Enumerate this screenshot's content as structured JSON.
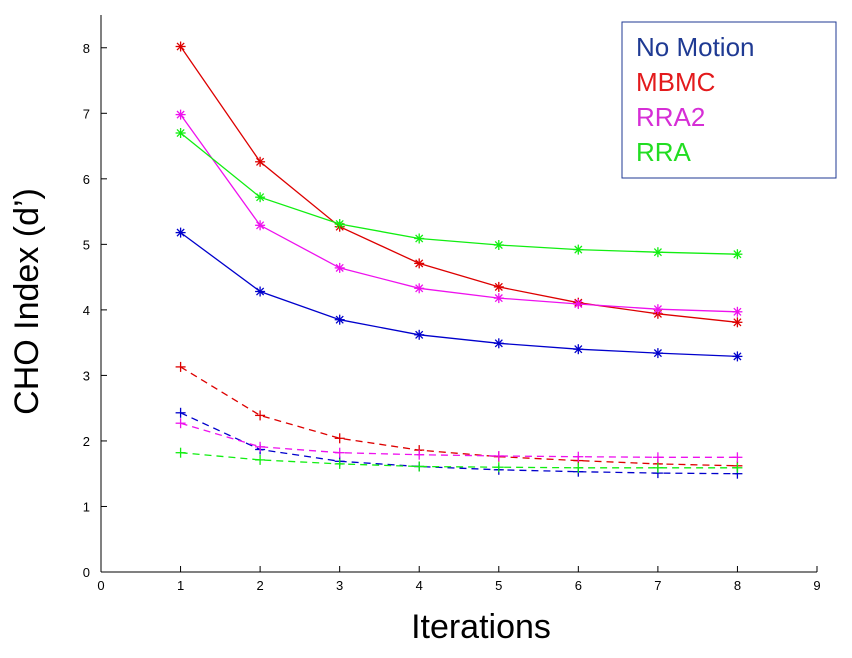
{
  "chart_data": {
    "type": "line",
    "title": "",
    "xlabel": "Iterations",
    "ylabel": "CHO Index (d’)",
    "xlim": [
      0,
      9
    ],
    "ylim": [
      0,
      8.5
    ],
    "xticks": [
      "0",
      "1",
      "2",
      "3",
      "4",
      "5",
      "6",
      "7",
      "8",
      "9"
    ],
    "yticks": [
      "0",
      "1",
      "2",
      "3",
      "4",
      "5",
      "6",
      "7",
      "8"
    ],
    "grid": false,
    "legend_position": "top-right",
    "legend": [
      {
        "label": "No Motion",
        "color": "#1f3a93"
      },
      {
        "label": "MBMC",
        "color": "#e31a1c"
      },
      {
        "label": "RRA2",
        "color": "#d62ed6"
      },
      {
        "label": "RRA",
        "color": "#22dd22"
      }
    ],
    "x": [
      1,
      2,
      3,
      4,
      5,
      6,
      7,
      8
    ],
    "series": [
      {
        "group": "No Motion",
        "style": "solid",
        "marker": "asterisk",
        "color": "#0000cc",
        "values": [
          5.18,
          4.28,
          3.85,
          3.62,
          3.49,
          3.4,
          3.34,
          3.29
        ]
      },
      {
        "group": "MBMC",
        "style": "solid",
        "marker": "asterisk",
        "color": "#dd0000",
        "values": [
          8.02,
          6.26,
          5.27,
          4.71,
          4.35,
          4.11,
          3.94,
          3.81
        ]
      },
      {
        "group": "RRA2",
        "style": "solid",
        "marker": "asterisk",
        "color": "#ee11ee",
        "values": [
          6.98,
          5.29,
          4.64,
          4.33,
          4.18,
          4.09,
          4.01,
          3.97
        ]
      },
      {
        "group": "RRA",
        "style": "solid",
        "marker": "asterisk",
        "color": "#11ee11",
        "values": [
          6.7,
          5.72,
          5.31,
          5.09,
          4.99,
          4.92,
          4.88,
          4.85
        ]
      },
      {
        "group": "No Motion",
        "style": "dashed",
        "marker": "plus",
        "color": "#0000cc",
        "values": [
          2.43,
          1.87,
          1.69,
          1.61,
          1.56,
          1.53,
          1.51,
          1.5
        ]
      },
      {
        "group": "MBMC",
        "style": "dashed",
        "marker": "plus",
        "color": "#dd0000",
        "values": [
          3.13,
          2.39,
          2.04,
          1.86,
          1.76,
          1.7,
          1.65,
          1.62
        ]
      },
      {
        "group": "RRA2",
        "style": "dashed",
        "marker": "plus",
        "color": "#ee11ee",
        "values": [
          2.27,
          1.91,
          1.82,
          1.79,
          1.77,
          1.76,
          1.75,
          1.75
        ]
      },
      {
        "group": "RRA",
        "style": "dashed",
        "marker": "plus",
        "color": "#11ee11",
        "values": [
          1.82,
          1.71,
          1.65,
          1.61,
          1.6,
          1.59,
          1.59,
          1.59
        ]
      }
    ]
  }
}
